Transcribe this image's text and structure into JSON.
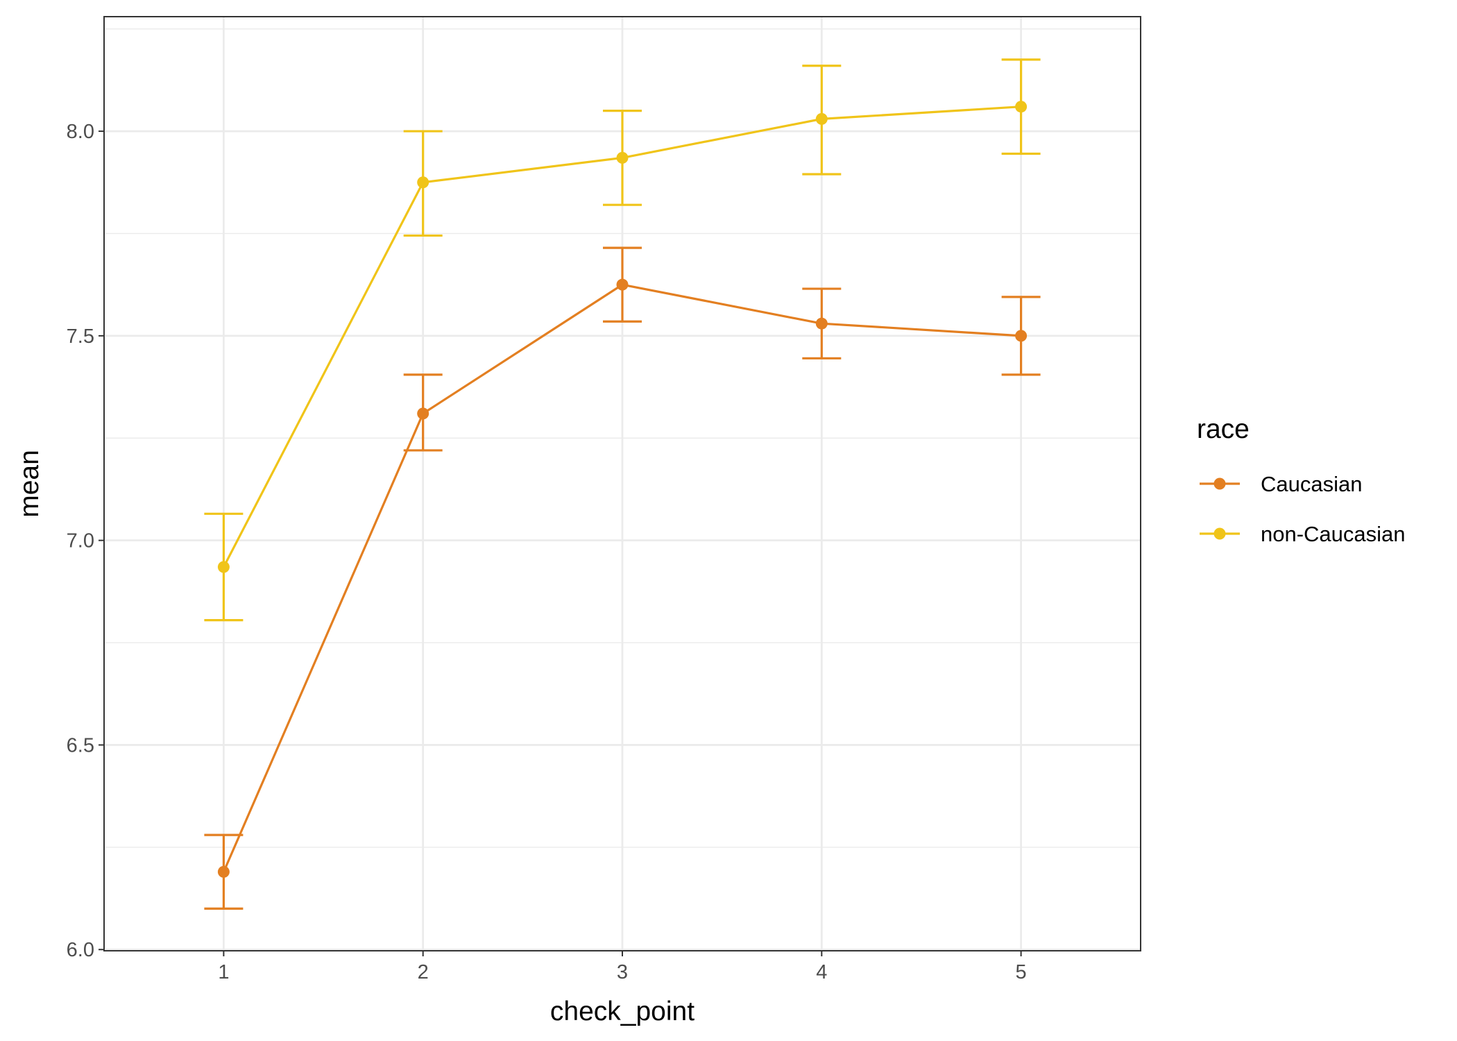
{
  "chart_data": {
    "type": "line",
    "xlabel": "check_point",
    "ylabel": "mean",
    "x": [
      1,
      2,
      3,
      4,
      5
    ],
    "xlim": [
      0.4,
      5.6
    ],
    "ylim": [
      5.997,
      8.28
    ],
    "x_ticks": [
      "1",
      "2",
      "3",
      "4",
      "5"
    ],
    "y_ticks": [
      {
        "value": 6.0,
        "label": "6.0"
      },
      {
        "value": 6.5,
        "label": "6.5"
      },
      {
        "value": 7.0,
        "label": "7.0"
      },
      {
        "value": 7.5,
        "label": "7.5"
      },
      {
        "value": 8.0,
        "label": "8.0"
      }
    ],
    "grid": true,
    "legend": {
      "title": "race",
      "position": "right"
    },
    "series": [
      {
        "name": "Caucasian",
        "color": "#E37F21",
        "values": [
          6.19,
          7.31,
          7.625,
          7.53,
          7.5
        ],
        "error_low": [
          6.1,
          7.22,
          7.535,
          7.445,
          7.405
        ],
        "error_high": [
          6.28,
          7.405,
          7.715,
          7.615,
          7.595
        ]
      },
      {
        "name": "non-Caucasian",
        "color": "#F0C419",
        "values": [
          6.935,
          7.875,
          7.935,
          8.03,
          8.06
        ],
        "error_low": [
          6.805,
          7.745,
          7.82,
          7.895,
          7.945
        ],
        "error_high": [
          7.065,
          8.0,
          8.05,
          8.16,
          8.175
        ]
      }
    ]
  }
}
